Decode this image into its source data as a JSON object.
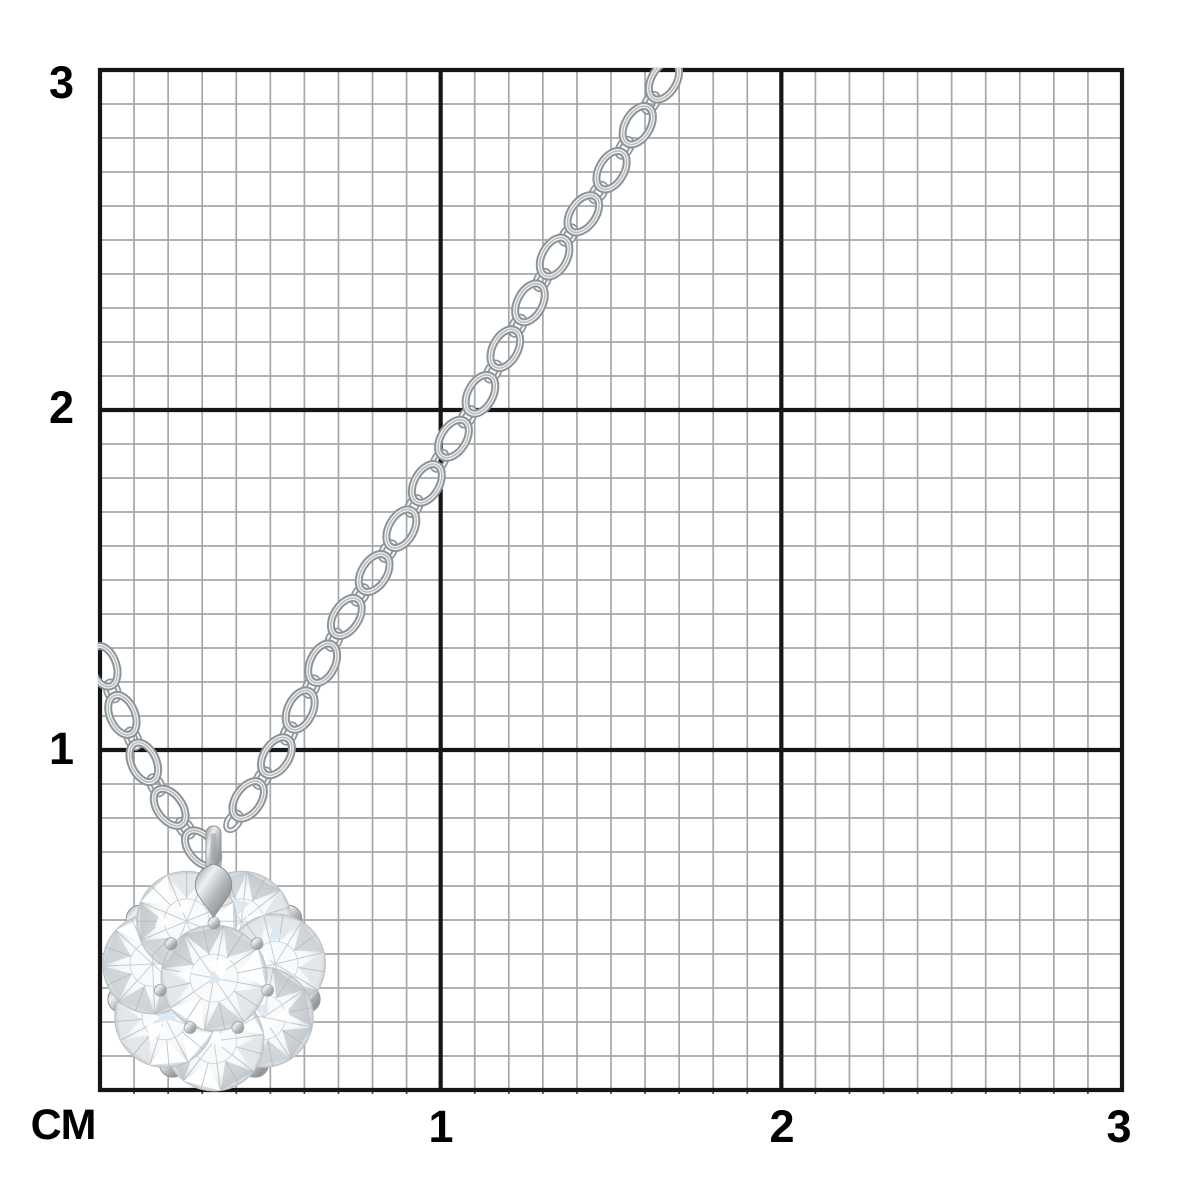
{
  "ruler": {
    "unit_label": "CM",
    "x_tick_labels": [
      "1",
      "2",
      "3"
    ],
    "y_tick_labels": [
      "3",
      "2",
      "1"
    ],
    "grid": {
      "cm_divisions": 3,
      "minor_per_major": 10,
      "minor_color": "#a7a7a7",
      "major_color": "#161616",
      "tick_color": "#4a4a4a",
      "background": "#ffffff"
    },
    "label_color": "#000000"
  },
  "photo": {
    "subject": "diamond-flower-cluster-pendant-necklace",
    "chain_style": "cable-link-chain",
    "outer_stone_count": 7,
    "center_stone_count": 1,
    "colors": {
      "metal_dark": "#8d9396",
      "metal_mid": "#b4b9bc",
      "metal_light": "#eef1f2",
      "cluster_base": "#e6e9ea",
      "diamond_base": "#f6f8f9",
      "facet_light": "#e2e6e9",
      "facet_mid": "#c6ccd0",
      "facet_dark": "#a9b0b5",
      "sparkle_blue": "#dbe7f0"
    }
  }
}
